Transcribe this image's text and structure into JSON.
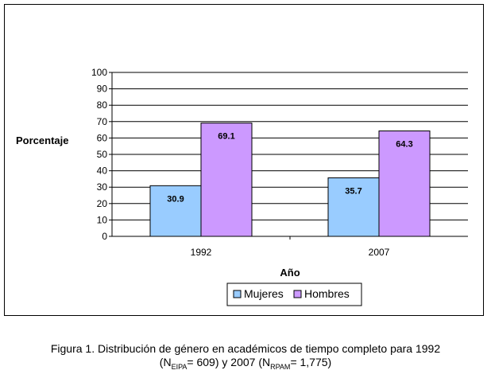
{
  "chart_data": {
    "type": "bar",
    "categories": [
      "1992",
      "2007"
    ],
    "series": [
      {
        "name": "Mujeres",
        "values": [
          30.9,
          35.7
        ],
        "color": "#99ccff"
      },
      {
        "name": "Hombres",
        "values": [
          69.1,
          64.3
        ],
        "color": "#cc99ff"
      }
    ],
    "xlabel": "Año",
    "ylabel": "Porcentaje",
    "ylim": [
      0,
      100
    ],
    "yticks": [
      0,
      10,
      20,
      30,
      40,
      50,
      60,
      70,
      80,
      90,
      100
    ],
    "grid": true,
    "legend": "bottom-center",
    "data_labels": true
  },
  "caption": {
    "line1": "Figura 1. Distribución de género en académicos de tiempo completo para 1992",
    "open": "(N",
    "sub1": "EIPA",
    "mid": "= 609) y 2007 (N",
    "sub2": "RPAM",
    "end": "= 1,775)"
  }
}
